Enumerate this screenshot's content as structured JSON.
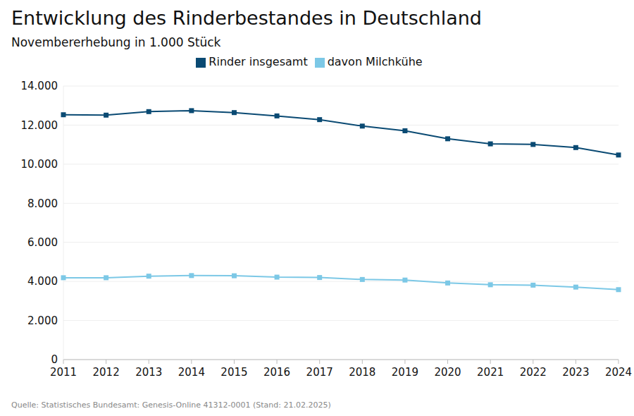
{
  "chart_data": {
    "type": "line",
    "title": "Entwicklung des Rinderbestandes in Deutschland",
    "subtitle": "Novembererhebung in 1.000 Stück",
    "source": "Quelle: Statistisches Bundesamt: Genesis-Online 41312-0001 (Stand: 21.02.2025)",
    "categories": [
      "2011",
      "2012",
      "2013",
      "2014",
      "2015",
      "2016",
      "2017",
      "2018",
      "2019",
      "2020",
      "2021",
      "2022",
      "2023",
      "2024"
    ],
    "series": [
      {
        "name": "Rinder insgesamt",
        "color": "#0a4a73",
        "marker": "square",
        "values": [
          12530,
          12510,
          12690,
          12740,
          12640,
          12470,
          12280,
          11950,
          11710,
          11300,
          11040,
          11010,
          10850,
          10470
        ]
      },
      {
        "name": "davon Milchkühe",
        "color": "#7cc8e6",
        "marker": "square",
        "values": [
          4190,
          4190,
          4270,
          4300,
          4290,
          4220,
          4200,
          4100,
          4070,
          3920,
          3830,
          3810,
          3710,
          3580
        ]
      }
    ],
    "ylim": [
      0,
      14000
    ],
    "yticks": [
      0,
      {
        "value": 2000,
        "label": "2.000"
      },
      {
        "value": 4000,
        "label": "4.000"
      },
      {
        "value": 6000,
        "label": "6.000"
      },
      {
        "value": 8000,
        "label": "8.000"
      },
      {
        "value": 10000,
        "label": "10.000"
      },
      {
        "value": 12000,
        "label": "12.000"
      },
      {
        "value": 14000,
        "label": "14.000"
      }
    ],
    "grid": true,
    "legend": "top"
  }
}
